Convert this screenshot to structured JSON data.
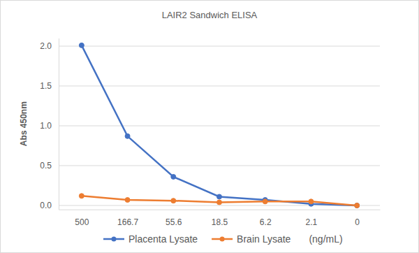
{
  "chart_data": {
    "type": "line",
    "title": "LAIR2 Sandwich ELISA",
    "y_label": "Abs 450nm",
    "x_label": "(ng/mL)",
    "categories": [
      "500",
      "166.7",
      "55.6",
      "18.5",
      "6.2",
      "2.1",
      "0"
    ],
    "series": [
      {
        "name": "Placenta Lysate",
        "color": "#4472c4",
        "marker": "circle",
        "values": [
          2.01,
          0.87,
          0.36,
          0.11,
          0.07,
          0.02,
          0.0
        ]
      },
      {
        "name": "Brain Lysate",
        "color": "#ed7d31",
        "marker": "circle",
        "values": [
          0.12,
          0.07,
          0.06,
          0.04,
          0.05,
          0.05,
          0.0
        ]
      }
    ],
    "ylim": [
      -0.05,
      2.1
    ],
    "yticks": [
      {
        "value": 0,
        "label": "0.0"
      },
      {
        "value": 0.5,
        "label": "0.5"
      },
      {
        "value": 1,
        "label": "1.0"
      },
      {
        "value": 1.5,
        "label": "1.5"
      },
      {
        "value": 2,
        "label": "2.0"
      }
    ],
    "grid": true,
    "legend": "bottom"
  }
}
